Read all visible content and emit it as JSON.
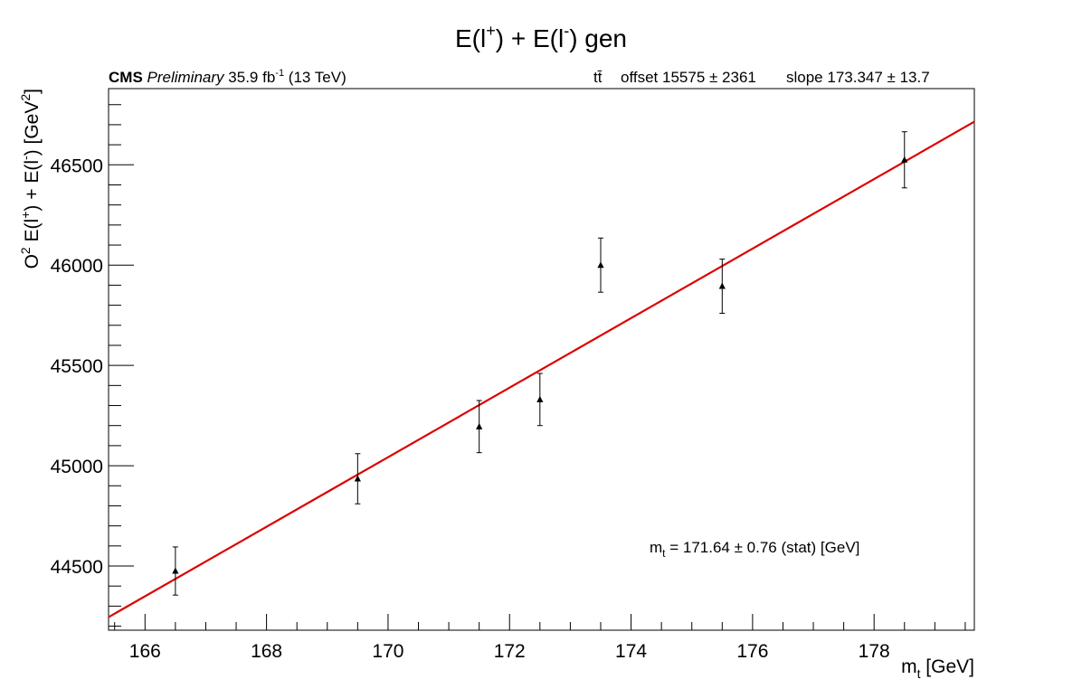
{
  "chart_data": {
    "type": "scatter",
    "title": "E(l+) + E(l-) gen",
    "title_parts": {
      "a": "E(l",
      "sup1": "+",
      "b": ") + E(l",
      "sup2": "-",
      "c": ") gen"
    },
    "cms_label": {
      "bold": "CMS",
      "italic": "Preliminary",
      "lumi": "35.9 fb",
      "lumi_sup": "-1",
      "energy": "(13 TeV)"
    },
    "fit_info": {
      "process": "tt̄",
      "offset": "offset 15575 ± 2361",
      "slope": "slope 173.347 ± 13.7"
    },
    "annotation": {
      "main": "m",
      "sub": "t",
      "rest": " = 171.64 ± 0.76 (stat) [GeV]"
    },
    "xlabel": {
      "main": "m",
      "sub": "t",
      "rest": " [GeV]"
    },
    "ylabel": {
      "a": "O",
      "sup_a": "2",
      "b": " E(l",
      "sup_b": "+",
      "c": ") + E(l",
      "sup_c": "-",
      "d": ") [GeV",
      "sup_d": "2",
      "e": "]"
    },
    "xlim": [
      165.4,
      179.65
    ],
    "ylim": [
      44180,
      46880
    ],
    "xticks": [
      166,
      168,
      170,
      172,
      174,
      176,
      178
    ],
    "xtick_labels": [
      "166",
      "168",
      "170",
      "172",
      "174",
      "176",
      "178"
    ],
    "yticks": [
      44500,
      45000,
      45500,
      46000,
      46500
    ],
    "ytick_labels": [
      "44500",
      "45000",
      "45500",
      "46000",
      "46500"
    ],
    "points": [
      {
        "x": 166.5,
        "y": 44475,
        "err": 120
      },
      {
        "x": 169.5,
        "y": 44935,
        "err": 125
      },
      {
        "x": 171.5,
        "y": 45195,
        "err": 130
      },
      {
        "x": 172.5,
        "y": 45330,
        "err": 130
      },
      {
        "x": 173.5,
        "y": 46000,
        "err": 135
      },
      {
        "x": 175.5,
        "y": 45895,
        "err": 135
      },
      {
        "x": 178.5,
        "y": 46525,
        "err": 140
      }
    ],
    "fit_line": {
      "x": [
        165.4,
        179.65
      ],
      "y": [
        44245,
        46715
      ],
      "color": "#dd0000"
    },
    "marker_color": "#000000",
    "grid": false
  }
}
